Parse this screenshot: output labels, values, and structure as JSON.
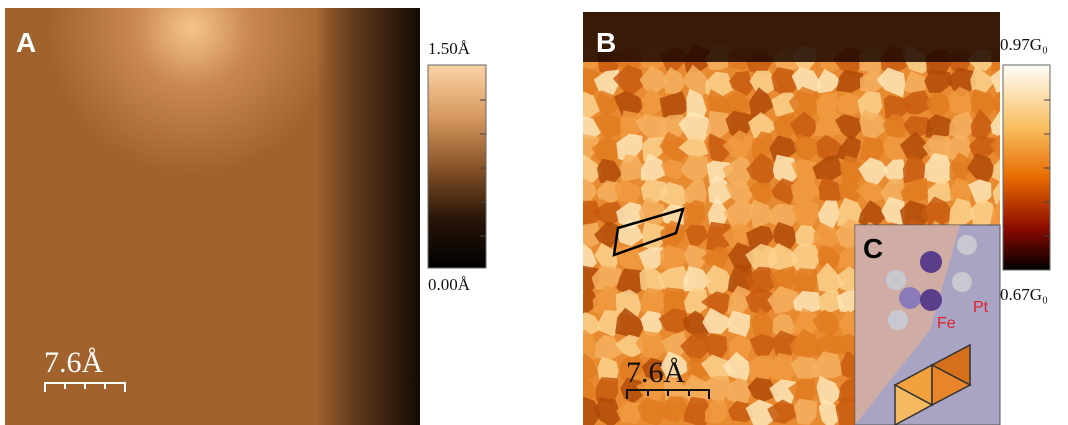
{
  "panels": [
    {
      "label": "A",
      "scale_bar": "7.6Å",
      "colorbar": {
        "max": "1.50Å",
        "min": "0.00Å"
      }
    },
    {
      "label": "B",
      "scale_bar": "7.6Å",
      "colorbar": {
        "max": "0.97G₀",
        "min": "0.67G₀"
      }
    }
  ],
  "inset": {
    "label": "C",
    "atoms": [
      "Fe",
      "Pt"
    ]
  }
}
